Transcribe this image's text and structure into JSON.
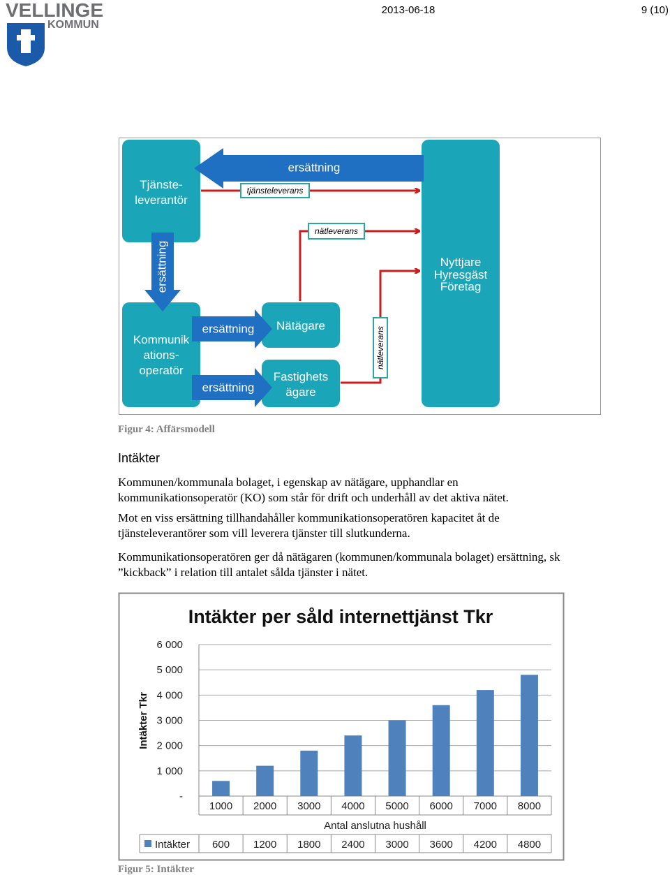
{
  "header": {
    "logo": {
      "name": "VELLINGE",
      "sub": "KOMMUN"
    },
    "date": "2013-06-18",
    "page": "9 (10)"
  },
  "figure4": {
    "nodes": [
      {
        "lines": [
          "Tjänste-",
          "leverantör"
        ]
      },
      {
        "lines": [
          "Kommunik",
          "ations-",
          "operatör"
        ]
      },
      {
        "lines": [
          "Nätägare"
        ]
      },
      {
        "lines": [
          "Fastighets",
          "ägare"
        ]
      },
      {
        "lines": [
          "Nyttjare",
          "Hyresgäst",
          "Företag"
        ]
      }
    ],
    "flows": [
      "ersättning",
      "tjänsteleverans",
      "nätleverans",
      "ersättning",
      "ersättning",
      "ersättning",
      "nätleverans"
    ],
    "caption": "Figur 4: Affärsmodell"
  },
  "section": {
    "heading": "Intäkter",
    "paragraphs": [
      [
        "Kommunen/kommunala bolaget, i egenskap av nätägare, upphandlar en",
        "kommunikationsoperatör (KO) som står för drift och underhåll av det aktiva nätet."
      ],
      [
        "Mot en viss ersättning tillhandahåller kommunikationsoperatören kapacitet åt de",
        "tjänsteleverantörer som vill leverera tjänster till slutkunderna."
      ],
      [
        "Kommunikationsoperatören ger då nätägaren (kommunen/kommunala bolaget) ersättning, sk",
        "”kickback” i relation till antalet sålda tjänster i nätet."
      ]
    ]
  },
  "chart_data": {
    "type": "bar",
    "title": "Intäkter per såld internettjänst Tkr",
    "x_label": "Antal anslutna hushåll",
    "y_label": "Intäkter Tkr",
    "categories": [
      "1000",
      "2000",
      "3000",
      "4000",
      "5000",
      "6000",
      "7000",
      "8000"
    ],
    "series": [
      {
        "name": "Intäkter",
        "color": "#4f81bd",
        "values": [
          600,
          1200,
          1800,
          2400,
          3000,
          3600,
          4200,
          4800
        ]
      }
    ],
    "ylim": [
      0,
      6000
    ],
    "yticks": [
      {
        "value": 0,
        "label": "-"
      },
      {
        "value": 1000,
        "label": "1 000"
      },
      {
        "value": 2000,
        "label": "2 000"
      },
      {
        "value": 3000,
        "label": "3 000"
      },
      {
        "value": 4000,
        "label": "4 000"
      },
      {
        "value": 5000,
        "label": "5 000"
      },
      {
        "value": 6000,
        "label": "6 000"
      }
    ],
    "grid": true,
    "data_table": true
  },
  "figure5": {
    "caption": "Figur 5: Intäkter"
  }
}
